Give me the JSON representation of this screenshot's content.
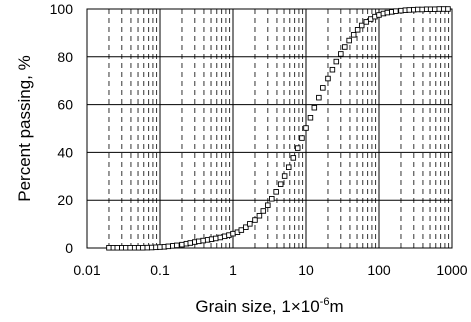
{
  "chart_data": {
    "type": "scatter",
    "x_scale": "log",
    "xlim": [
      0.01,
      1000
    ],
    "ylim": [
      0,
      100
    ],
    "xticks": [
      "0.01",
      "0.1",
      "1",
      "10",
      "100",
      "1000"
    ],
    "yticks": [
      "0",
      "20",
      "40",
      "60",
      "80",
      "100"
    ],
    "xlabel": {
      "main": "Grain size, 1×10",
      "exp": "-6",
      "unit": "m"
    },
    "ylabel": "Percent passing, %",
    "grid": "horizontal solid at every 20 %; vertical solid at decades, dashed at minor log ticks",
    "marker": "open-square",
    "series": [
      {
        "points": [
          [
            0.02,
            0.1
          ],
          [
            0.023,
            0.1
          ],
          [
            0.026,
            0.1
          ],
          [
            0.03,
            0.1
          ],
          [
            0.034,
            0.1
          ],
          [
            0.039,
            0.1
          ],
          [
            0.045,
            0.1
          ],
          [
            0.051,
            0.1
          ],
          [
            0.058,
            0.1
          ],
          [
            0.067,
            0.15
          ],
          [
            0.077,
            0.2
          ],
          [
            0.088,
            0.3
          ],
          [
            0.1,
            0.4
          ],
          [
            0.115,
            0.5
          ],
          [
            0.13,
            0.7
          ],
          [
            0.15,
            0.9
          ],
          [
            0.17,
            1.1
          ],
          [
            0.2,
            1.4
          ],
          [
            0.23,
            1.8
          ],
          [
            0.26,
            2.1
          ],
          [
            0.3,
            2.5
          ],
          [
            0.34,
            2.8
          ],
          [
            0.39,
            3.1
          ],
          [
            0.45,
            3.4
          ],
          [
            0.51,
            3.7
          ],
          [
            0.58,
            4.0
          ],
          [
            0.67,
            4.4
          ],
          [
            0.77,
            4.9
          ],
          [
            0.88,
            5.4
          ],
          [
            1.0,
            6.0
          ],
          [
            1.15,
            6.6
          ],
          [
            1.3,
            7.5
          ],
          [
            1.5,
            8.7
          ],
          [
            1.7,
            10.1
          ],
          [
            2.0,
            11.7
          ],
          [
            2.3,
            13.5
          ],
          [
            2.6,
            15.5
          ],
          [
            3.0,
            17.9
          ],
          [
            3.4,
            20.6
          ],
          [
            3.9,
            23.5
          ],
          [
            4.5,
            26.7
          ],
          [
            5.1,
            30.1
          ],
          [
            5.8,
            33.8
          ],
          [
            6.7,
            37.7
          ],
          [
            7.7,
            41.8
          ],
          [
            8.8,
            46.0
          ],
          [
            10,
            50.2
          ],
          [
            11.5,
            54.5
          ],
          [
            13,
            58.7
          ],
          [
            15,
            62.9
          ],
          [
            17,
            67.0
          ],
          [
            20,
            70.9
          ],
          [
            23,
            74.6
          ],
          [
            26,
            78.0
          ],
          [
            30,
            81.2
          ],
          [
            34,
            84.1
          ],
          [
            39,
            86.8
          ],
          [
            45,
            89.2
          ],
          [
            51,
            91.3
          ],
          [
            58,
            93.1
          ],
          [
            67,
            94.6
          ],
          [
            77,
            95.8
          ],
          [
            88,
            96.8
          ],
          [
            100,
            97.5
          ],
          [
            115,
            98.1
          ],
          [
            130,
            98.5
          ],
          [
            150,
            98.8
          ],
          [
            170,
            99.1
          ],
          [
            200,
            99.3
          ],
          [
            230,
            99.5
          ],
          [
            260,
            99.6
          ],
          [
            300,
            99.7
          ],
          [
            340,
            99.8
          ],
          [
            390,
            99.8
          ],
          [
            450,
            99.9
          ],
          [
            510,
            99.9
          ],
          [
            580,
            99.9
          ],
          [
            670,
            100
          ],
          [
            770,
            100
          ],
          [
            880,
            100
          ]
        ]
      }
    ]
  }
}
